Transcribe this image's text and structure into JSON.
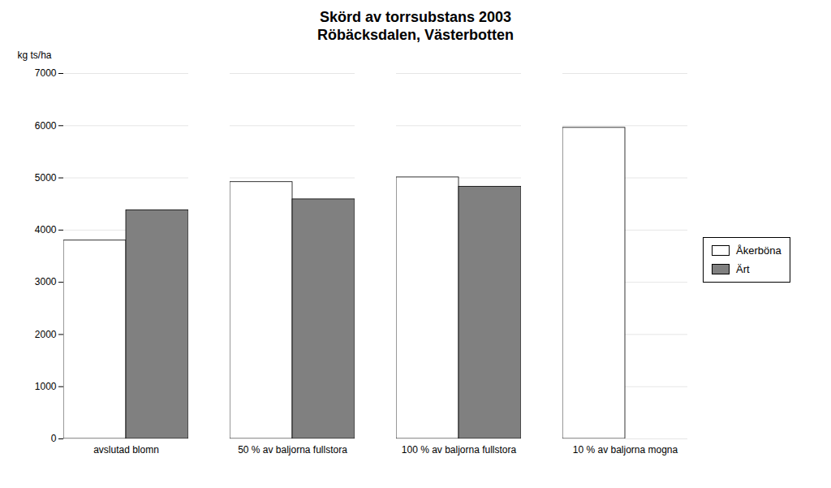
{
  "chart_data": {
    "type": "bar",
    "title": "Skörd av torrsubstans 2003",
    "subtitle": "Röbäcksdalen, Västerbotten",
    "ylabel": "kg ts/ha",
    "categories": [
      "avslutad blomn",
      "50 % av baljorna fullstora",
      "100 % av baljorna fullstora",
      "10 % av baljorna mogna"
    ],
    "series": [
      {
        "name": "Åkerböna",
        "color": "#ffffff",
        "values": [
          3800,
          4920,
          5010,
          5960
        ]
      },
      {
        "name": "Ärt",
        "color": "#808080",
        "values": [
          4380,
          4590,
          4830,
          0
        ]
      }
    ],
    "ylim": [
      0,
      7000
    ],
    "yticks": [
      0,
      1000,
      2000,
      3000,
      4000,
      5000,
      6000,
      7000
    ],
    "grid": true,
    "legend": "right"
  }
}
